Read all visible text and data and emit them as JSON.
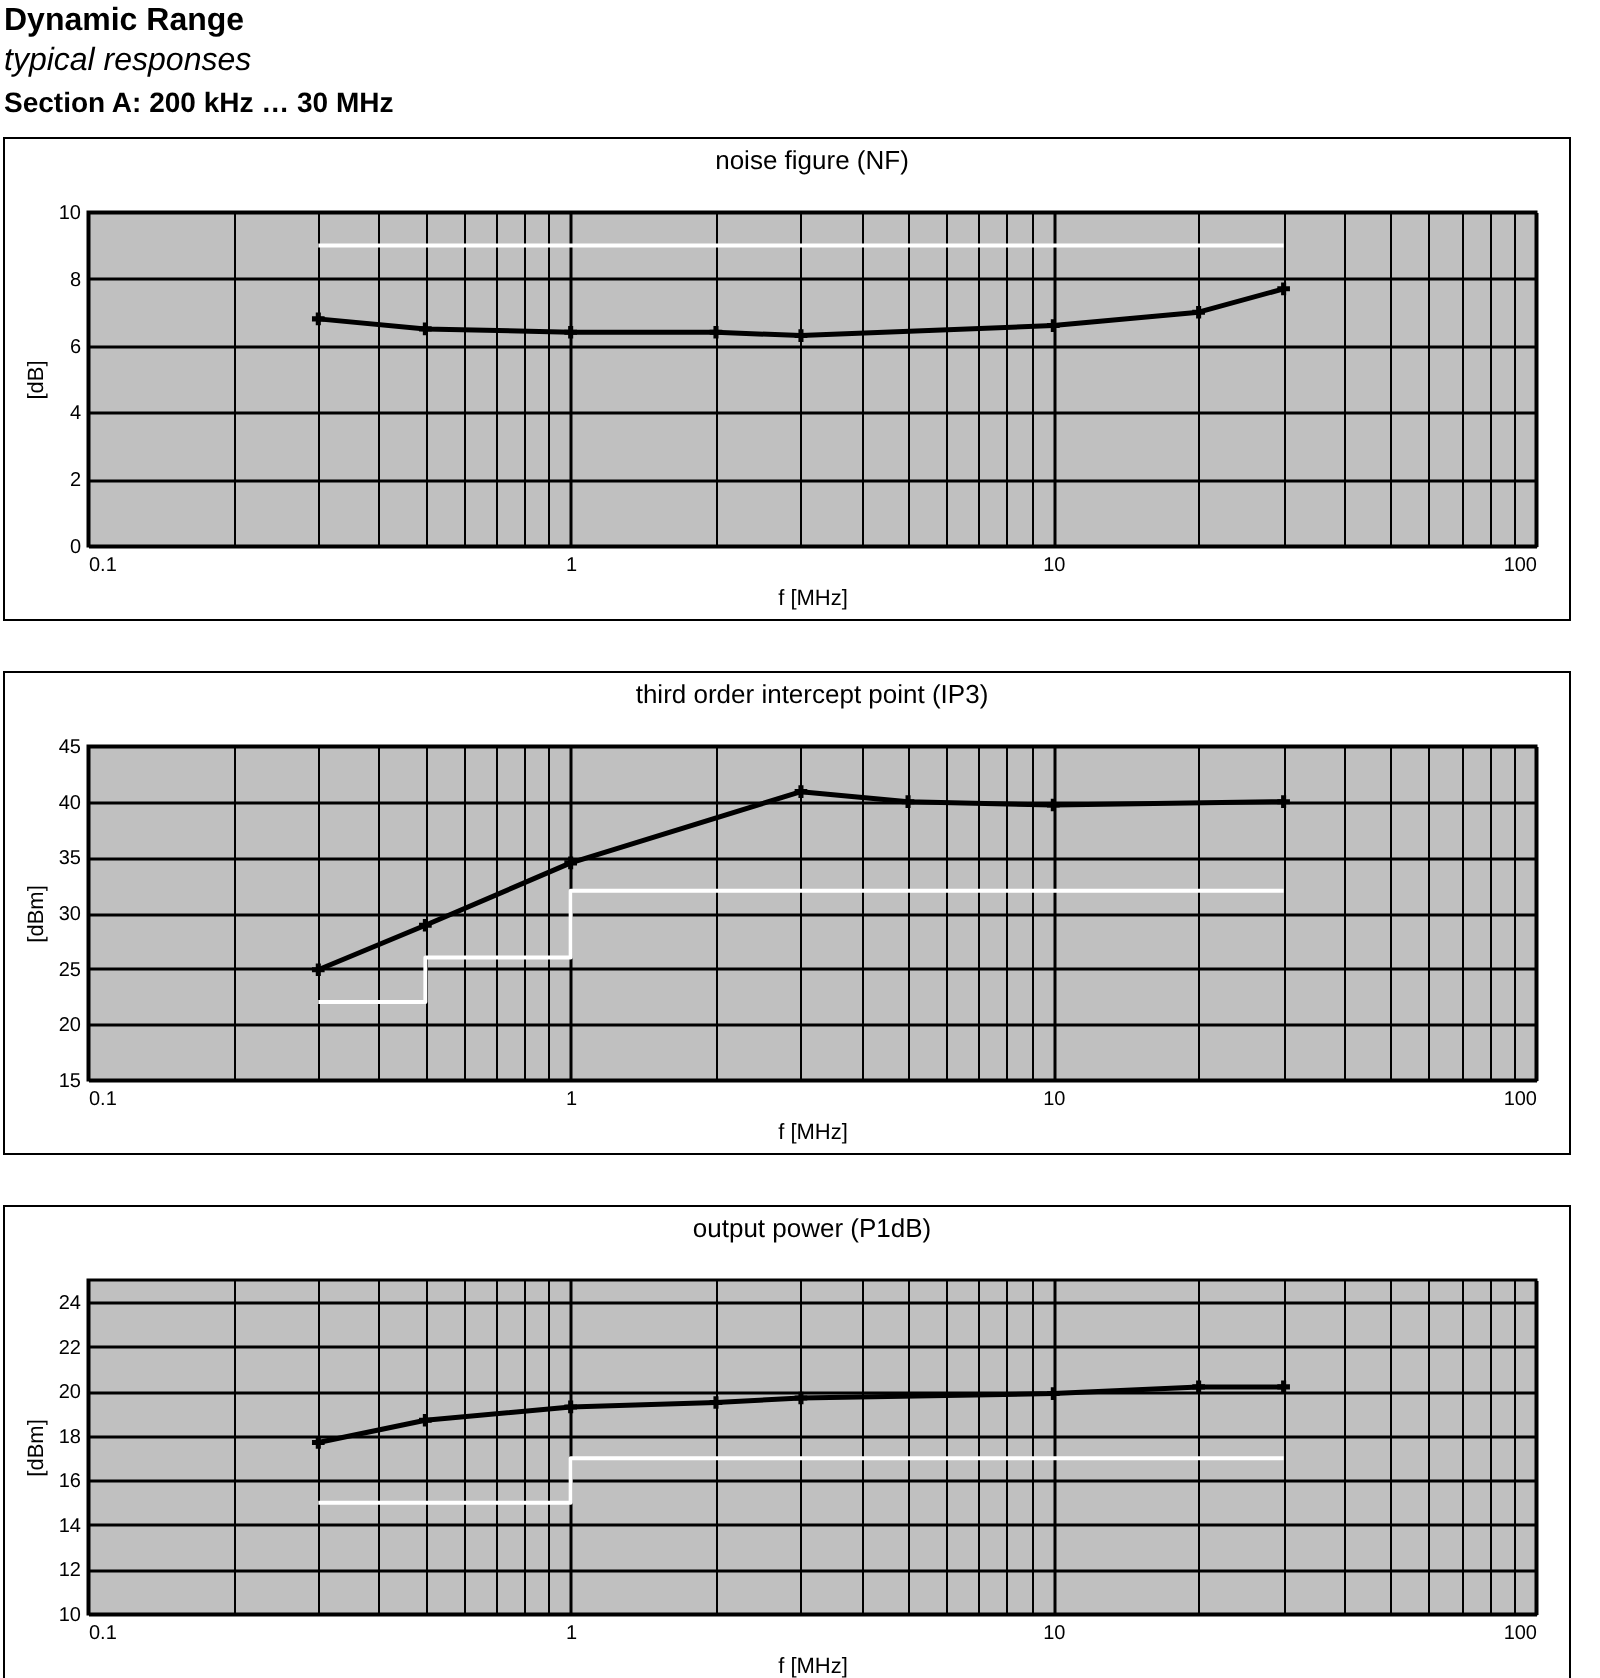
{
  "chart_data": [
    {
      "type": "line",
      "title": "noise figure (NF)",
      "xlabel": "f [MHz]",
      "ylabel": "[dB]",
      "annotations": [
        "Dynamic Range",
        "typical responses",
        "Section A: 200 kHz … 30 MHz"
      ],
      "log": "x",
      "xlim": [
        0.1,
        100
      ],
      "xticks": [
        0.1,
        {
          "value": 0.2,
          "label": null
        },
        {
          "value": 0.3,
          "label": null
        },
        {
          "value": 0.4,
          "label": null
        },
        {
          "value": 0.5,
          "label": null
        },
        {
          "value": 0.6,
          "label": null
        },
        {
          "value": 0.7,
          "label": null
        },
        {
          "value": 0.8,
          "label": null
        },
        {
          "value": 0.9,
          "label": null
        },
        1,
        {
          "value": 2,
          "label": null
        },
        {
          "value": 3,
          "label": null
        },
        {
          "value": 4,
          "label": null
        },
        {
          "value": 5,
          "label": null
        },
        {
          "value": 6,
          "label": null
        },
        {
          "value": 7,
          "label": null
        },
        {
          "value": 8,
          "label": null
        },
        {
          "value": 9,
          "label": null
        },
        10,
        {
          "value": 20,
          "label": null
        },
        {
          "value": 30,
          "label": null
        },
        {
          "value": 40,
          "label": null
        },
        {
          "value": 50,
          "label": null
        },
        {
          "value": 60,
          "label": null
        },
        {
          "value": 70,
          "label": null
        },
        {
          "value": 80,
          "label": null
        },
        {
          "value": 90,
          "label": null
        },
        100
      ],
      "ylim": [
        0,
        10
      ],
      "yticks": [
        0,
        2,
        4,
        6,
        8,
        10
      ],
      "grid": true,
      "series": [
        {
          "type": "line",
          "color": "#000000",
          "marker": "cross",
          "x": [
            0.3,
            0.5,
            1,
            2,
            3,
            10,
            20,
            30
          ],
          "values": [
            6.8,
            6.5,
            6.4,
            6.4,
            6.3,
            6.6,
            7.0,
            7.7
          ]
        },
        {
          "type": "step",
          "color": "#ffffff",
          "x": [
            0.3,
            30
          ],
          "values": [
            9,
            9
          ]
        }
      ]
    },
    {
      "type": "line",
      "title": "third order intercept point (IP3)",
      "xlabel": "f [MHz]",
      "ylabel": "[dBm]",
      "log": "x",
      "xlim": [
        0.1,
        100
      ],
      "xticks": [
        0.1,
        {
          "value": 0.2,
          "label": null
        },
        {
          "value": 0.3,
          "label": null
        },
        {
          "value": 0.4,
          "label": null
        },
        {
          "value": 0.5,
          "label": null
        },
        {
          "value": 0.6,
          "label": null
        },
        {
          "value": 0.7,
          "label": null
        },
        {
          "value": 0.8,
          "label": null
        },
        {
          "value": 0.9,
          "label": null
        },
        1,
        {
          "value": 2,
          "label": null
        },
        {
          "value": 3,
          "label": null
        },
        {
          "value": 4,
          "label": null
        },
        {
          "value": 5,
          "label": null
        },
        {
          "value": 6,
          "label": null
        },
        {
          "value": 7,
          "label": null
        },
        {
          "value": 8,
          "label": null
        },
        {
          "value": 9,
          "label": null
        },
        10,
        {
          "value": 20,
          "label": null
        },
        {
          "value": 30,
          "label": null
        },
        {
          "value": 40,
          "label": null
        },
        {
          "value": 50,
          "label": null
        },
        {
          "value": 60,
          "label": null
        },
        {
          "value": 70,
          "label": null
        },
        {
          "value": 80,
          "label": null
        },
        {
          "value": 90,
          "label": null
        },
        100
      ],
      "ylim": [
        15,
        45
      ],
      "yticks": [
        15,
        20,
        25,
        30,
        35,
        40,
        45
      ],
      "grid": true,
      "series": [
        {
          "type": "line",
          "color": "#000000",
          "marker": "cross",
          "x": [
            0.3,
            0.5,
            1,
            3,
            5,
            10,
            30
          ],
          "values": [
            24.9,
            28.9,
            34.5,
            40.9,
            40.0,
            39.7,
            40.0
          ]
        },
        {
          "type": "step",
          "color": "#ffffff",
          "x": [
            0.3,
            0.5,
            1,
            30
          ],
          "values": [
            22,
            26,
            32,
            32
          ]
        }
      ]
    },
    {
      "type": "line",
      "title": "output power (P1dB)",
      "xlabel": "f [MHz]",
      "ylabel": "[dBm]",
      "log": "x",
      "xlim": [
        0.1,
        100
      ],
      "xticks": [
        0.1,
        {
          "value": 0.2,
          "label": null
        },
        {
          "value": 0.3,
          "label": null
        },
        {
          "value": 0.4,
          "label": null
        },
        {
          "value": 0.5,
          "label": null
        },
        {
          "value": 0.6,
          "label": null
        },
        {
          "value": 0.7,
          "label": null
        },
        {
          "value": 0.8,
          "label": null
        },
        {
          "value": 0.9,
          "label": null
        },
        1,
        {
          "value": 2,
          "label": null
        },
        {
          "value": 3,
          "label": null
        },
        {
          "value": 4,
          "label": null
        },
        {
          "value": 5,
          "label": null
        },
        {
          "value": 6,
          "label": null
        },
        {
          "value": 7,
          "label": null
        },
        {
          "value": 8,
          "label": null
        },
        {
          "value": 9,
          "label": null
        },
        10,
        {
          "value": 20,
          "label": null
        },
        {
          "value": 30,
          "label": null
        },
        {
          "value": 40,
          "label": null
        },
        {
          "value": 50,
          "label": null
        },
        {
          "value": 60,
          "label": null
        },
        {
          "value": 70,
          "label": null
        },
        {
          "value": 80,
          "label": null
        },
        {
          "value": 90,
          "label": null
        },
        100
      ],
      "ylim": [
        10,
        25
      ],
      "yticks": [
        10,
        12,
        14,
        16,
        18,
        20,
        22,
        24
      ],
      "grid": true,
      "series": [
        {
          "type": "line",
          "color": "#000000",
          "marker": "cross",
          "x": [
            0.3,
            0.5,
            1,
            2,
            3,
            10,
            20,
            30
          ],
          "values": [
            17.7,
            18.7,
            19.3,
            19.5,
            19.7,
            19.9,
            20.2,
            20.2
          ]
        },
        {
          "type": "step",
          "color": "#ffffff",
          "x": [
            0.3,
            1,
            30
          ],
          "values": [
            15,
            17,
            17
          ]
        }
      ]
    }
  ]
}
